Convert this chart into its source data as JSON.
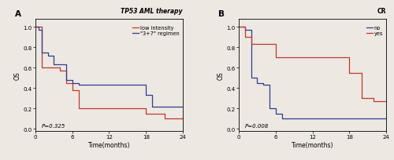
{
  "panel_A": {
    "title": "TP53 AML therapy",
    "xlabel": "Time(months)",
    "ylabel": "OS",
    "pvalue": "P=0.325",
    "xlim": [
      0,
      24
    ],
    "ylim": [
      -0.02,
      1.08
    ],
    "xticks": [
      0,
      6,
      12,
      18,
      24
    ],
    "yticks": [
      0.0,
      0.2,
      0.4,
      0.6,
      0.8,
      1.0
    ],
    "curves": {
      "low_intensity": {
        "label": "low intensity",
        "color": "#c0392b",
        "x": [
          0,
          1,
          1,
          4,
          4,
          5,
          5,
          6,
          6,
          7,
          7,
          10,
          10,
          18,
          18,
          21,
          21,
          24
        ],
        "y": [
          1.0,
          1.0,
          0.6,
          0.6,
          0.57,
          0.57,
          0.45,
          0.45,
          0.38,
          0.38,
          0.2,
          0.2,
          0.2,
          0.2,
          0.15,
          0.15,
          0.1,
          0.1
        ]
      },
      "regimen_3_7": {
        "label": "\"3+7\" regimen",
        "color": "#2c3e8c",
        "x": [
          0,
          0.5,
          0.5,
          1,
          1,
          2,
          2,
          3,
          3,
          5,
          5,
          6,
          6,
          7,
          7,
          10,
          10,
          18,
          18,
          19,
          19,
          24
        ],
        "y": [
          1.0,
          1.0,
          0.97,
          0.97,
          0.75,
          0.75,
          0.72,
          0.72,
          0.63,
          0.63,
          0.48,
          0.48,
          0.45,
          0.45,
          0.43,
          0.43,
          0.43,
          0.43,
          0.33,
          0.33,
          0.22,
          0.22
        ]
      }
    }
  },
  "panel_B": {
    "title": "CR",
    "xlabel": "Time(months)",
    "ylabel": "OS",
    "pvalue": "P=0.008",
    "xlim": [
      0,
      24
    ],
    "ylim": [
      -0.02,
      1.08
    ],
    "xticks": [
      0,
      6,
      12,
      18,
      24
    ],
    "yticks": [
      0.0,
      0.2,
      0.4,
      0.6,
      0.8,
      1.0
    ],
    "curves": {
      "no": {
        "label": "no",
        "color": "#2c3e8c",
        "x": [
          0,
          1,
          1,
          2,
          2,
          3,
          3,
          4,
          4,
          5,
          5,
          6,
          6,
          7,
          7,
          9,
          9,
          24
        ],
        "y": [
          1.0,
          1.0,
          0.97,
          0.97,
          0.5,
          0.5,
          0.45,
          0.45,
          0.43,
          0.43,
          0.2,
          0.2,
          0.15,
          0.15,
          0.1,
          0.1,
          0.1,
          0.1
        ]
      },
      "yes": {
        "label": "yes",
        "color": "#c0392b",
        "x": [
          0,
          1,
          1,
          2,
          2,
          6,
          6,
          9,
          9,
          18,
          18,
          20,
          20,
          22,
          22,
          24
        ],
        "y": [
          1.0,
          1.0,
          0.9,
          0.9,
          0.83,
          0.83,
          0.7,
          0.7,
          0.7,
          0.7,
          0.55,
          0.55,
          0.3,
          0.3,
          0.27,
          0.27
        ]
      }
    }
  },
  "bg_color": "#ede8e2",
  "legend_fontsize": 4.8,
  "title_fontsize": 5.5,
  "axis_label_fontsize": 5.5,
  "tick_fontsize": 5.0,
  "pvalue_fontsize": 5.0,
  "panel_label_fontsize": 7.5,
  "linewidth": 0.9
}
